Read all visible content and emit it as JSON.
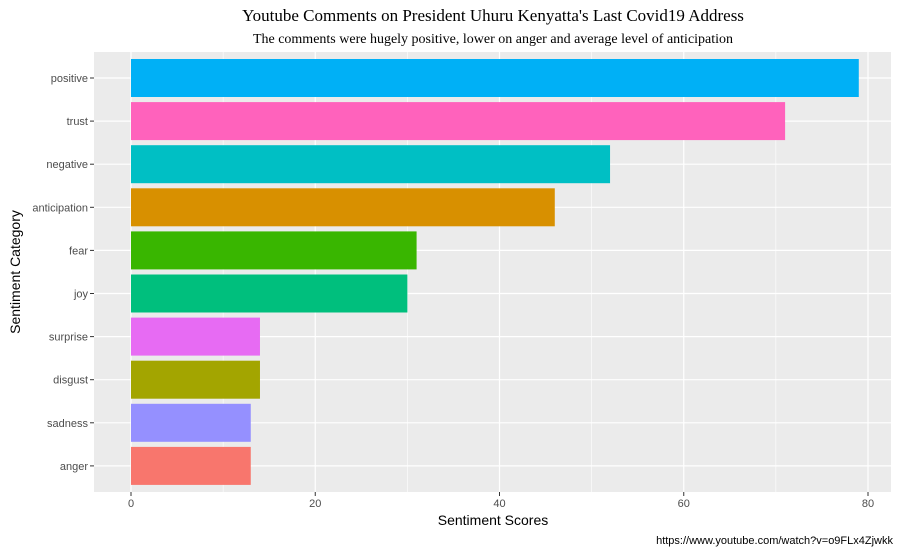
{
  "chart_data": {
    "type": "bar",
    "orientation": "horizontal",
    "title": "Youtube Comments on President Uhuru Kenyatta's Last Covid19 Address",
    "subtitle": "The comments were hugely positive, lower on anger and average level of anticipation",
    "xlabel": "Sentiment Scores",
    "ylabel": "Sentiment Category",
    "caption": "https://www.youtube.com/watch?v=o9FLx4Zjwkk",
    "xlim": [
      0,
      80
    ],
    "xticks": [
      0,
      20,
      40,
      60,
      80
    ],
    "grid": true,
    "legend": "none",
    "categories": [
      "positive",
      "trust",
      "negative",
      "anticipation",
      "fear",
      "joy",
      "surprise",
      "disgust",
      "sadness",
      "anger"
    ],
    "values": [
      79,
      71,
      52,
      46,
      31,
      30,
      14,
      14,
      13,
      13
    ],
    "colors": [
      "#00B0F6",
      "#FF62BC",
      "#00BFC4",
      "#D89000",
      "#39B600",
      "#00BF7D",
      "#E76BF3",
      "#A3A500",
      "#9590FF",
      "#F8766D"
    ]
  }
}
